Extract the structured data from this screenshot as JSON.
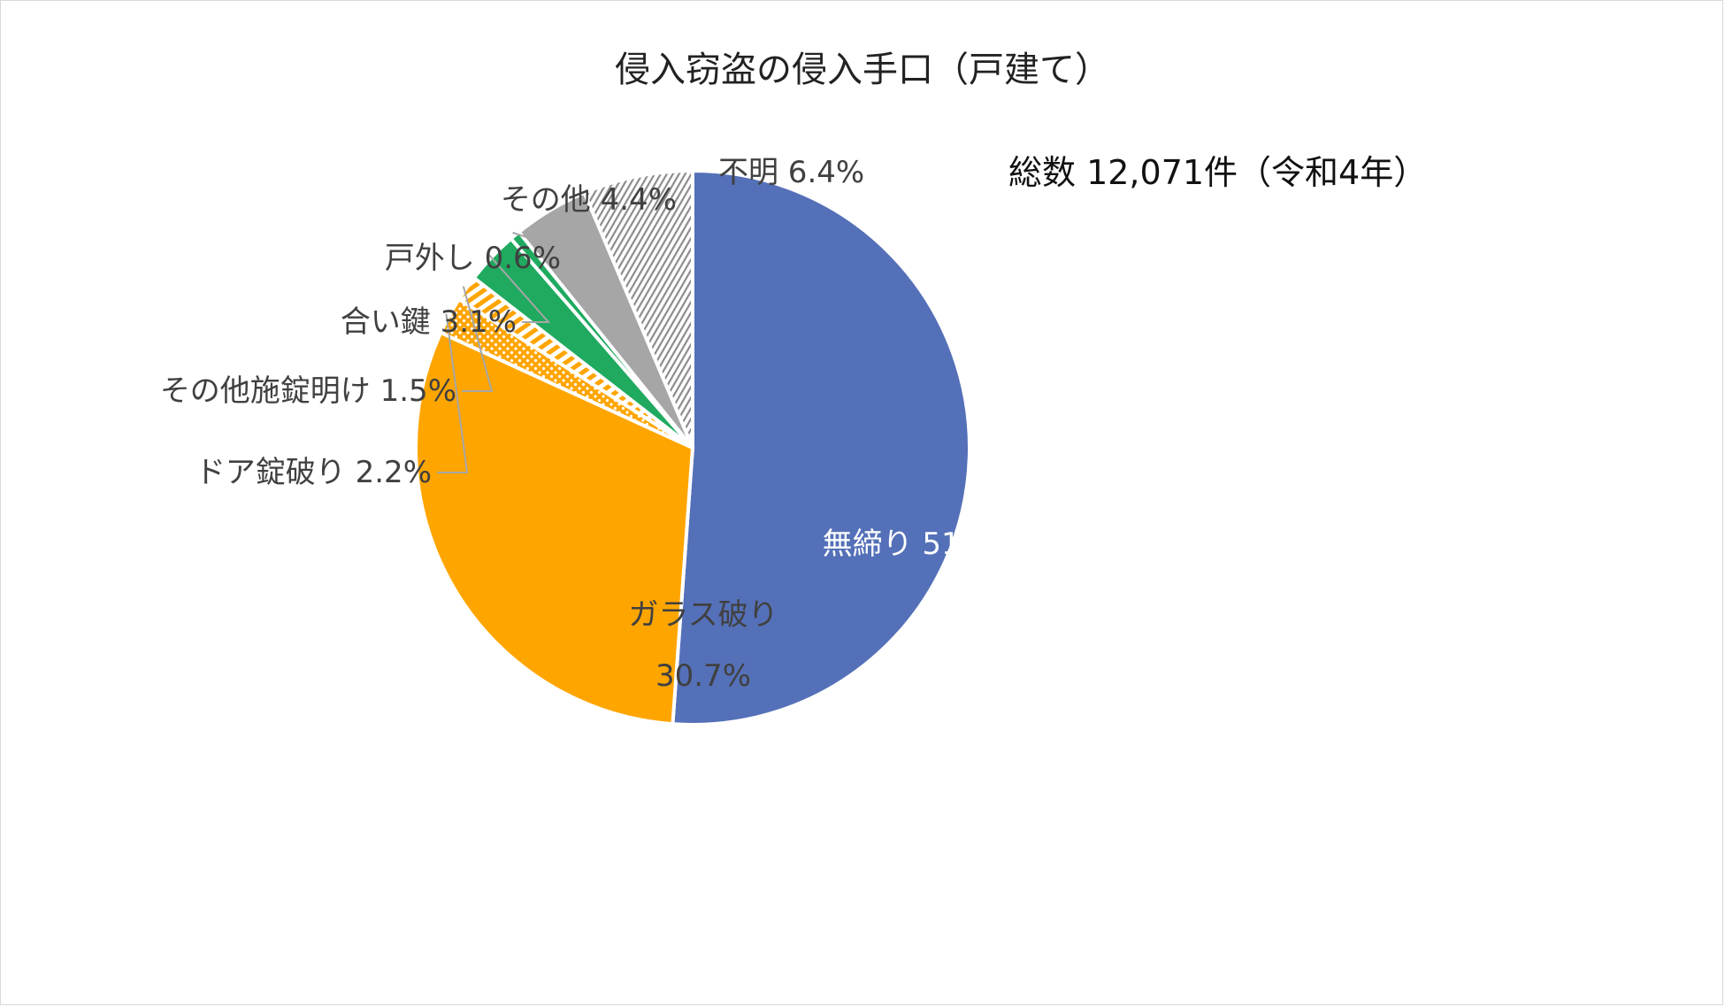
{
  "chart_data": {
    "type": "pie",
    "title": "侵入窃盗の侵入手口（戸建て）",
    "annotation": "総数 12,071件（令和4年）",
    "start_angle_deg": 0,
    "direction": "clockwise",
    "colors": {
      "blue": "#5470B8",
      "orange": "#FFA500",
      "green": "#1FAA60",
      "gray": "#A6A6A6",
      "hatch_gray": "#8C8C8C"
    },
    "slices": [
      {
        "label": "無締り",
        "value": 51.2,
        "display": "無締り 51.2%",
        "color": "#5470B8",
        "fill": "solid"
      },
      {
        "label": "ガラス破り",
        "value": 30.7,
        "display_line1": "ガラス破り",
        "display_line2": "30.7%",
        "color": "#FFA500",
        "fill": "solid"
      },
      {
        "label": "ドア錠破り",
        "value": 2.2,
        "display": "ドア錠破り 2.2%",
        "color": "#FFA500",
        "fill": "dots"
      },
      {
        "label": "その他施錠明け",
        "value": 1.5,
        "display": "その他施錠明け 1.5%",
        "color": "#FFA500",
        "fill": "stripes"
      },
      {
        "label": "合い鍵",
        "value": 3.1,
        "display": "合い鍵 3.1%",
        "color": "#1FAA60",
        "fill": "solid"
      },
      {
        "label": "戸外し",
        "value": 0.6,
        "display": "戸外し 0.6%",
        "color": "#1FAA60",
        "fill": "solid"
      },
      {
        "label": "その他",
        "value": 4.4,
        "display": "その他 4.4%",
        "color": "#A6A6A6",
        "fill": "solid"
      },
      {
        "label": "不明",
        "value": 6.4,
        "display": "不明 6.4%",
        "color": "#8C8C8C",
        "fill": "hatch"
      }
    ]
  }
}
